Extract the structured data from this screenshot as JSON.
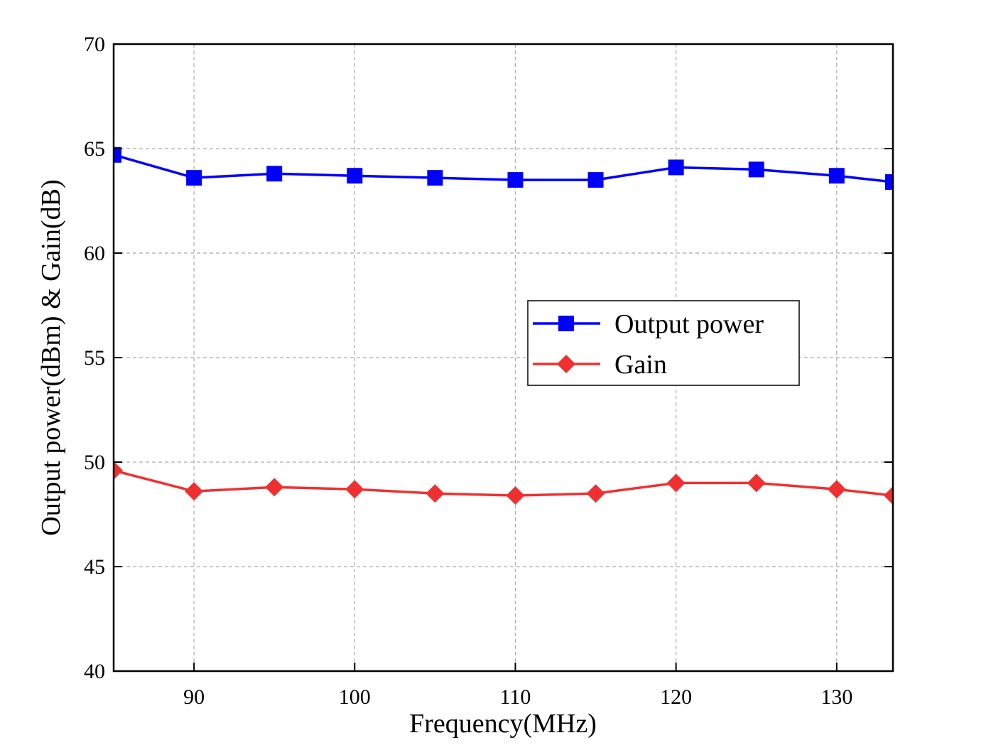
{
  "chart_data": {
    "type": "line",
    "x_label": "Frequency(MHz)",
    "y_label": "Output power(dBm) & Gain(dB)",
    "x": [
      85,
      90,
      95,
      100,
      105,
      110,
      115,
      120,
      125,
      130,
      133.5
    ],
    "series": [
      {
        "name": "Output power",
        "color": "#0000ff",
        "marker": "square",
        "values": [
          64.7,
          63.6,
          63.8,
          63.7,
          63.6,
          63.5,
          63.5,
          64.1,
          64.0,
          63.7,
          63.4
        ]
      },
      {
        "name": "Gain",
        "color": "#f03030",
        "marker": "diamond",
        "values": [
          49.6,
          48.6,
          48.8,
          48.7,
          48.5,
          48.4,
          48.5,
          49.0,
          49.0,
          48.7,
          48.4
        ]
      }
    ],
    "xlim": [
      85,
      133.5
    ],
    "xticks": [
      90,
      100,
      110,
      120,
      130
    ],
    "ylim": [
      40,
      70
    ],
    "yticks": [
      40,
      45,
      50,
      55,
      60,
      65,
      70
    ],
    "grid": true
  }
}
